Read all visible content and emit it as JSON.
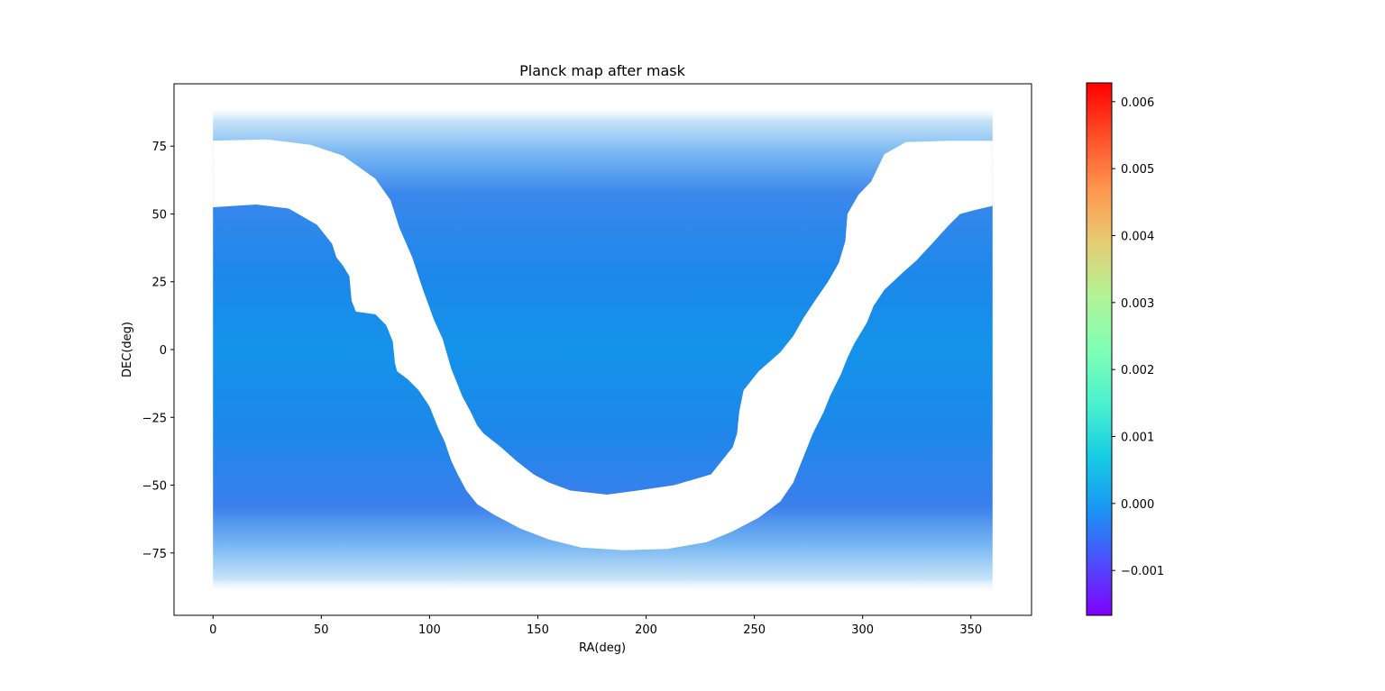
{
  "chart_data": {
    "type": "heatmap",
    "title": "Planck map after mask",
    "xlabel": "RA(deg)",
    "ylabel": "DEC(deg)",
    "xlim": [
      -18,
      378
    ],
    "ylim": [
      -98,
      98
    ],
    "xticks": [
      0,
      50,
      100,
      150,
      200,
      250,
      300,
      350
    ],
    "yticks": [
      -75,
      -50,
      -25,
      0,
      25,
      50,
      75
    ],
    "data_extent": {
      "ra": [
        0,
        360
      ],
      "dec": [
        -90,
        90
      ]
    },
    "typical_value": 0.0,
    "masked_band": {
      "description": "Galactic plane mask",
      "upper_edge": [
        [
          0,
          77
        ],
        [
          25,
          77.5
        ],
        [
          45,
          75.5
        ],
        [
          60,
          71.5
        ],
        [
          75,
          63
        ],
        [
          82,
          55
        ],
        [
          86,
          45
        ],
        [
          92,
          34
        ],
        [
          97,
          22
        ],
        [
          102,
          11
        ],
        [
          106,
          4
        ],
        [
          110,
          -7
        ],
        [
          115,
          -17
        ],
        [
          119,
          -23
        ],
        [
          122,
          -28
        ],
        [
          125,
          -31
        ],
        [
          133,
          -36
        ],
        [
          140,
          -41
        ],
        [
          148,
          -46
        ],
        [
          155,
          -49
        ],
        [
          165,
          -52
        ],
        [
          182,
          -53.5
        ],
        [
          196,
          -52
        ],
        [
          213,
          -50
        ],
        [
          230,
          -46
        ],
        [
          235,
          -41
        ],
        [
          240,
          -36
        ],
        [
          242,
          -31
        ],
        [
          243,
          -23
        ],
        [
          245,
          -15
        ],
        [
          252,
          -8
        ],
        [
          262,
          -1
        ],
        [
          268,
          5
        ],
        [
          273,
          12
        ],
        [
          278,
          18
        ],
        [
          284,
          25
        ],
        [
          289,
          32
        ],
        [
          292,
          40
        ],
        [
          293,
          50
        ],
        [
          298,
          57
        ],
        [
          304,
          62
        ],
        [
          310,
          72
        ],
        [
          320,
          76.5
        ],
        [
          340,
          77
        ],
        [
          360,
          77
        ]
      ],
      "lower_edge": [
        [
          0,
          52.5
        ],
        [
          20,
          53.5
        ],
        [
          35,
          52
        ],
        [
          48,
          46
        ],
        [
          55,
          39
        ],
        [
          57,
          34
        ],
        [
          60,
          31
        ],
        [
          63,
          27
        ],
        [
          64,
          18
        ],
        [
          66,
          14
        ],
        [
          75,
          13
        ],
        [
          80,
          9
        ],
        [
          83,
          3
        ],
        [
          84,
          -5
        ],
        [
          85,
          -8
        ],
        [
          90,
          -11
        ],
        [
          95,
          -15
        ],
        [
          100,
          -21
        ],
        [
          104,
          -29
        ],
        [
          107,
          -34
        ],
        [
          110,
          -41
        ],
        [
          113,
          -46
        ],
        [
          117,
          -52
        ],
        [
          122,
          -57
        ],
        [
          130,
          -61
        ],
        [
          142,
          -66
        ],
        [
          155,
          -70
        ],
        [
          170,
          -73
        ],
        [
          190,
          -74
        ],
        [
          210,
          -73.5
        ],
        [
          228,
          -71
        ],
        [
          240,
          -67
        ],
        [
          252,
          -62
        ],
        [
          262,
          -56
        ],
        [
          268,
          -49
        ],
        [
          272,
          -41
        ],
        [
          277,
          -31
        ],
        [
          282,
          -23
        ],
        [
          285,
          -17
        ],
        [
          290,
          -9
        ],
        [
          293,
          -3
        ],
        [
          296,
          2
        ],
        [
          302,
          10
        ],
        [
          305,
          16
        ],
        [
          310,
          22
        ],
        [
          318,
          28
        ],
        [
          325,
          33
        ],
        [
          332,
          39
        ],
        [
          340,
          46
        ],
        [
          345,
          50
        ],
        [
          352,
          51.5
        ],
        [
          360,
          53
        ]
      ]
    },
    "colorbar": {
      "colormap": "rainbow",
      "vmin": -0.00167,
      "vmax": 0.00628,
      "ticks": [
        "0.006",
        "0.005",
        "0.004",
        "0.003",
        "0.002",
        "0.001",
        "0.000",
        "−0.001"
      ],
      "tick_values": [
        0.006,
        0.005,
        0.004,
        0.003,
        0.002,
        0.001,
        0.0,
        -0.001
      ]
    },
    "xtick_labels": [
      "0",
      "50",
      "100",
      "150",
      "200",
      "250",
      "300",
      "350"
    ],
    "ytick_labels": [
      "−75",
      "−50",
      "−25",
      "0",
      "25",
      "50",
      "75"
    ]
  }
}
